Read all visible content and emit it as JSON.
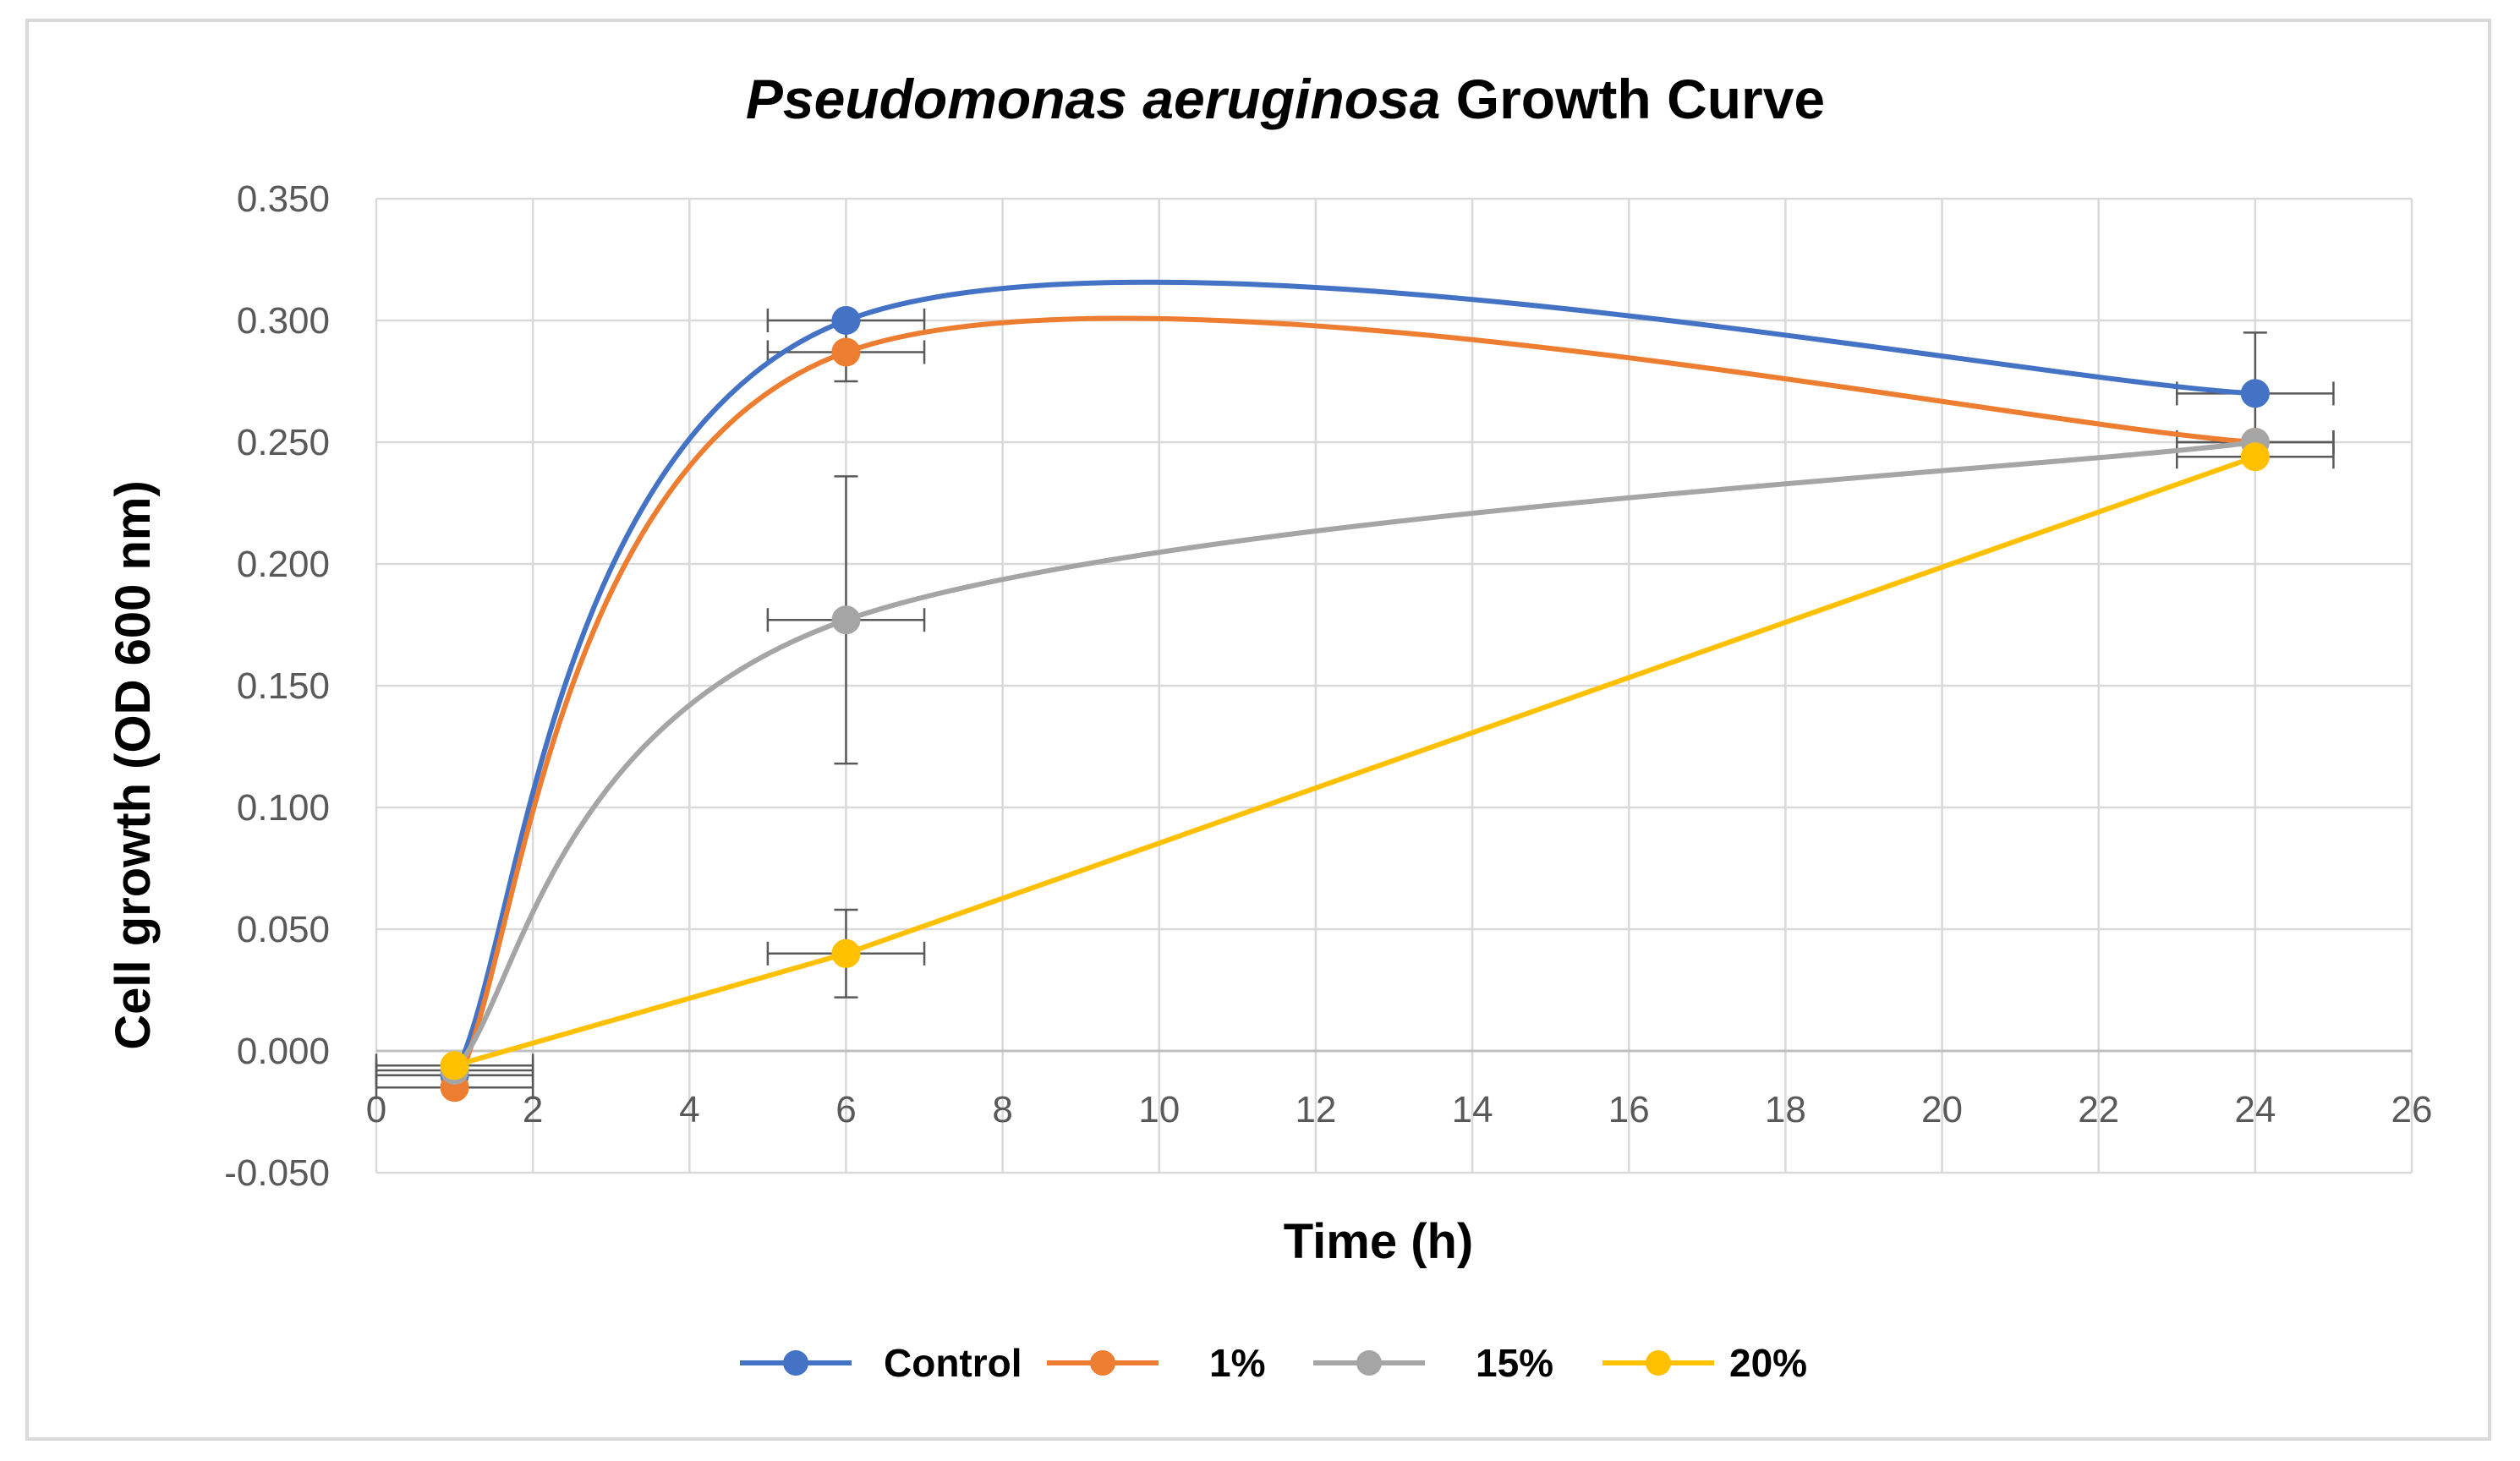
{
  "chart_data": {
    "type": "line",
    "title_italic": "Pseudomonas aeruginosa",
    "title_rest": " Growth Curve",
    "xlabel": "Time (h)",
    "ylabel": "Cell growth (OD 600 nm)",
    "xlim": [
      0,
      26
    ],
    "ylim": [
      -0.05,
      0.35
    ],
    "xticks": [
      "0",
      "2",
      "4",
      "6",
      "8",
      "10",
      "12",
      "14",
      "16",
      "18",
      "20",
      "22",
      "24",
      "26"
    ],
    "yticks": [
      "0.350",
      "0.300",
      "0.250",
      "0.200",
      "0.150",
      "0.100",
      "0.050",
      "0.000",
      "-0.050"
    ],
    "grid": true,
    "legend_position": "bottom",
    "x": [
      1,
      6,
      24
    ],
    "x_error": 1,
    "series": [
      {
        "name": "Control",
        "color": "#4472C4",
        "smooth": true,
        "values": [
          -0.01,
          0.3,
          0.27
        ],
        "yerr": [
          0.004,
          0.0,
          0.025
        ]
      },
      {
        "name": "1%",
        "color": "#ED7D31",
        "smooth": true,
        "values": [
          -0.015,
          0.287,
          0.25
        ],
        "yerr": [
          0.0,
          0.012,
          0.0
        ]
      },
      {
        "name": "15%",
        "color": "#A5A5A5",
        "smooth": true,
        "values": [
          -0.008,
          0.177,
          0.25
        ],
        "yerr": [
          0.0,
          0.059,
          0.0
        ]
      },
      {
        "name": "20%",
        "color": "#FFC000",
        "smooth": false,
        "values": [
          -0.006,
          0.04,
          0.244
        ],
        "yerr": [
          0.0,
          0.018,
          0.0
        ]
      }
    ]
  }
}
